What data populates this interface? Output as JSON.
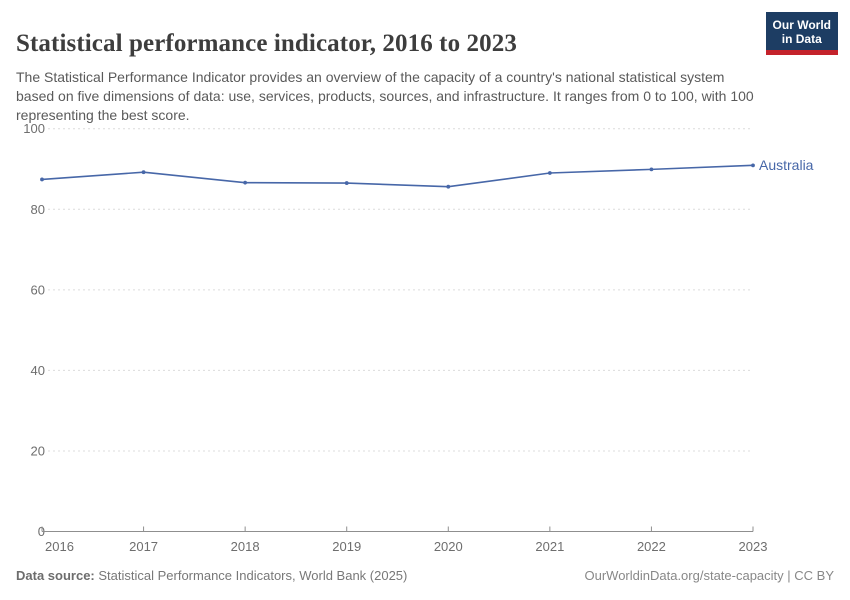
{
  "header": {
    "title": "Statistical performance indicator, 2016 to 2023",
    "logo": {
      "line1": "Our World",
      "line2": "in Data"
    }
  },
  "subtitle": "The Statistical Performance Indicator provides an overview of the capacity of a country's national statistical system based on five dimensions of data: use, services, products, sources, and infrastructure. It ranges from 0 to 100, with 100 representing the best score.",
  "chart_data": {
    "type": "line",
    "title": "Statistical performance indicator, 2016 to 2023",
    "x": [
      2016,
      2017,
      2018,
      2019,
      2020,
      2021,
      2022,
      2023
    ],
    "series": [
      {
        "name": "Australia",
        "values": [
          87.4,
          89.2,
          86.6,
          86.5,
          85.6,
          89.0,
          89.9,
          90.9
        ],
        "color": "#4767a8"
      }
    ],
    "ylim": [
      0,
      100
    ],
    "yticks": [
      0,
      20,
      40,
      60,
      80,
      100
    ],
    "xlabel": "",
    "ylabel": "",
    "grid": "horizontal-dashed",
    "legend": "end-of-line-label",
    "marker": "dot"
  },
  "footer": {
    "source_label": "Data source:",
    "source_text": " Statistical Performance Indicators, World Bank (2025)",
    "right_text": "OurWorldinData.org/state-capacity | CC BY"
  },
  "colors": {
    "line": "#4767a8",
    "grid": "#dcdcdc",
    "axis": "#8f8f8f",
    "tick_label": "#6e6e6e",
    "logo_bg": "#1d3d63",
    "logo_stripe": "#c4222b"
  }
}
